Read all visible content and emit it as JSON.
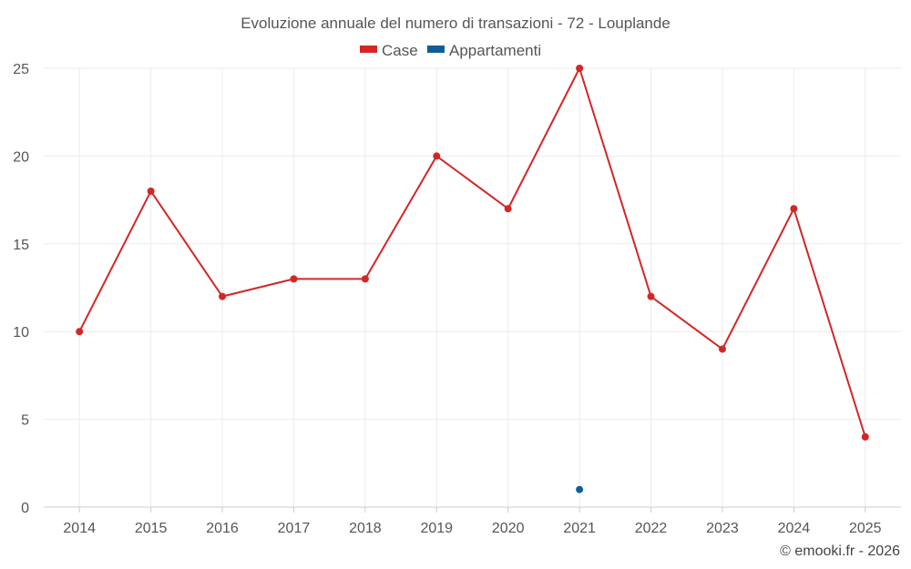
{
  "chart_data": {
    "type": "line",
    "title": "Evoluzione annuale del numero di transazioni - 72 - Louplande",
    "categories": [
      "2014",
      "2015",
      "2016",
      "2017",
      "2018",
      "2019",
      "2020",
      "2021",
      "2022",
      "2023",
      "2024",
      "2025"
    ],
    "series": [
      {
        "name": "Case",
        "color": "#d32626",
        "values": [
          10,
          18,
          12,
          13,
          13,
          20,
          17,
          25,
          12,
          9,
          17,
          4
        ]
      },
      {
        "name": "Appartamenti",
        "color": "#0d5f97",
        "values": [
          null,
          null,
          null,
          null,
          null,
          null,
          null,
          1,
          null,
          null,
          null,
          null
        ]
      }
    ],
    "y_ticks": [
      "0",
      "5",
      "10",
      "15",
      "20",
      "25"
    ],
    "ylim": [
      0,
      25
    ],
    "grid": true,
    "legend_position": "top-center",
    "xlabel": "",
    "ylabel": ""
  },
  "credit": "© emooki.fr - 2026"
}
